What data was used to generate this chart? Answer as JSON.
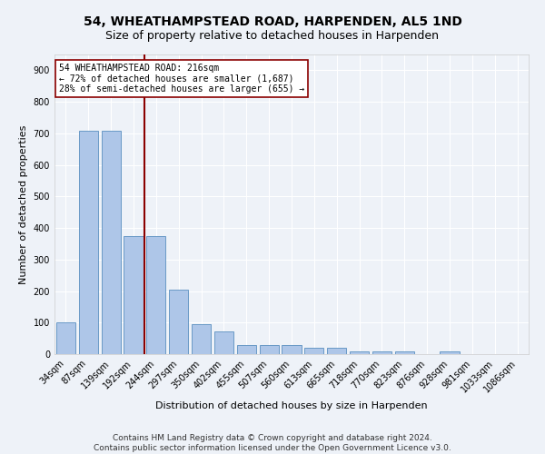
{
  "title": "54, WHEATHAMPSTEAD ROAD, HARPENDEN, AL5 1ND",
  "subtitle": "Size of property relative to detached houses in Harpenden",
  "xlabel": "Distribution of detached houses by size in Harpenden",
  "ylabel": "Number of detached properties",
  "categories": [
    "34sqm",
    "87sqm",
    "139sqm",
    "192sqm",
    "244sqm",
    "297sqm",
    "350sqm",
    "402sqm",
    "455sqm",
    "507sqm",
    "560sqm",
    "613sqm",
    "665sqm",
    "718sqm",
    "770sqm",
    "823sqm",
    "876sqm",
    "928sqm",
    "981sqm",
    "1033sqm",
    "1086sqm"
  ],
  "values": [
    100,
    707,
    707,
    375,
    375,
    205,
    95,
    72,
    29,
    30,
    30,
    20,
    20,
    10,
    10,
    10,
    0,
    8,
    0,
    0,
    0
  ],
  "bar_color": "#aec6e8",
  "bar_edge_color": "#5a8fc0",
  "vline_x": 3.5,
  "vline_color": "#8b0000",
  "annotation_title": "54 WHEATHAMPSTEAD ROAD: 216sqm",
  "annotation_line1": "← 72% of detached houses are smaller (1,687)",
  "annotation_line2": "28% of semi-detached houses are larger (655) →",
  "annotation_box_color": "#ffffff",
  "annotation_box_edge": "#8b0000",
  "ylim": [
    0,
    950
  ],
  "yticks": [
    0,
    100,
    200,
    300,
    400,
    500,
    600,
    700,
    800,
    900
  ],
  "footer_line1": "Contains HM Land Registry data © Crown copyright and database right 2024.",
  "footer_line2": "Contains public sector information licensed under the Open Government Licence v3.0.",
  "bg_color": "#eef2f8",
  "plot_bg_color": "#eef2f8",
  "grid_color": "#ffffff",
  "title_fontsize": 10,
  "subtitle_fontsize": 9,
  "axis_label_fontsize": 8,
  "tick_fontsize": 7,
  "footer_fontsize": 6.5
}
